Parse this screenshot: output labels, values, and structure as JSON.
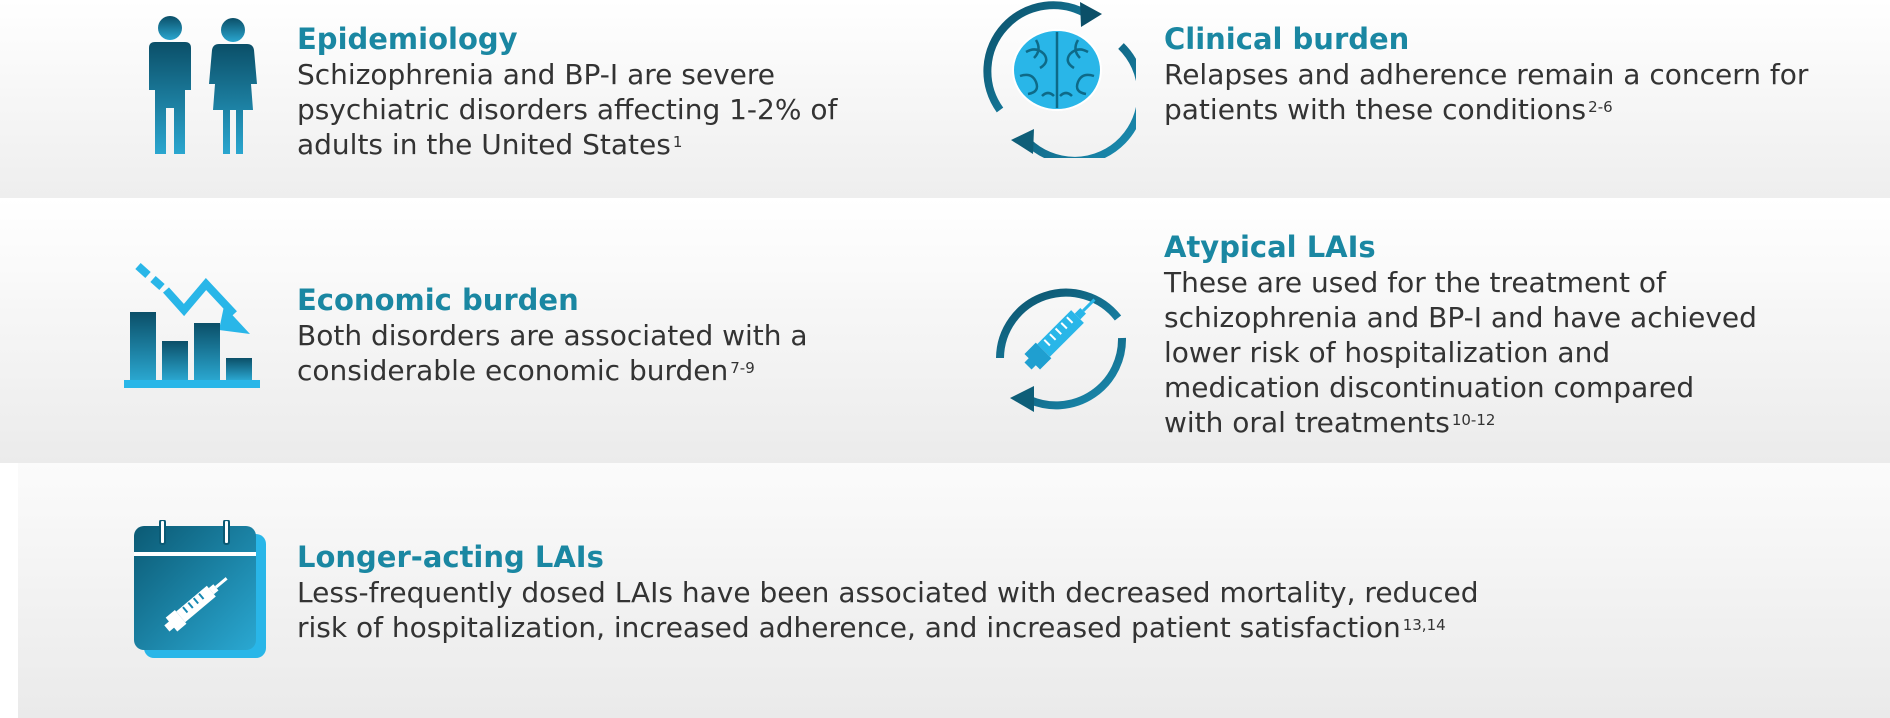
{
  "cards": {
    "epidemiology": {
      "title": "Epidemiology",
      "lines": [
        "Schizophrenia and BP-I are severe",
        "psychiatric disorders affecting 1-2% of",
        "adults in the United States"
      ],
      "ref": "1",
      "icon": "people-icon"
    },
    "clinical": {
      "title": "Clinical burden",
      "lines": [
        "Relapses and adherence remain a concern for",
        "patients with these conditions"
      ],
      "ref": "2-6",
      "icon": "brain-cycle-icon"
    },
    "economic": {
      "title": "Economic burden",
      "lines": [
        "Both disorders are associated with a",
        "considerable economic burden"
      ],
      "ref": "7-9",
      "icon": "declining-bar-chart-icon"
    },
    "atypical": {
      "title": "Atypical LAIs",
      "lines": [
        "These are used for the treatment of",
        "schizophrenia and BP-I and have achieved",
        "lower risk of hospitalization and",
        "medication discontinuation compared",
        "with oral treatments"
      ],
      "ref": "10-12",
      "icon": "syringe-cycle-icon"
    },
    "longer": {
      "title": "Longer-acting LAIs",
      "lines": [
        "Less-frequently dosed LAIs have been associated with decreased mortality, reduced",
        "risk of hospitalization, increased adherence, and increased patient satisfaction"
      ],
      "ref": "13,14",
      "icon": "calendar-syringe-icon"
    }
  },
  "colors": {
    "title": "#1a87a2",
    "body": "#333333",
    "dark_teal": "#0e5e78",
    "light_blue": "#29b6e8"
  }
}
